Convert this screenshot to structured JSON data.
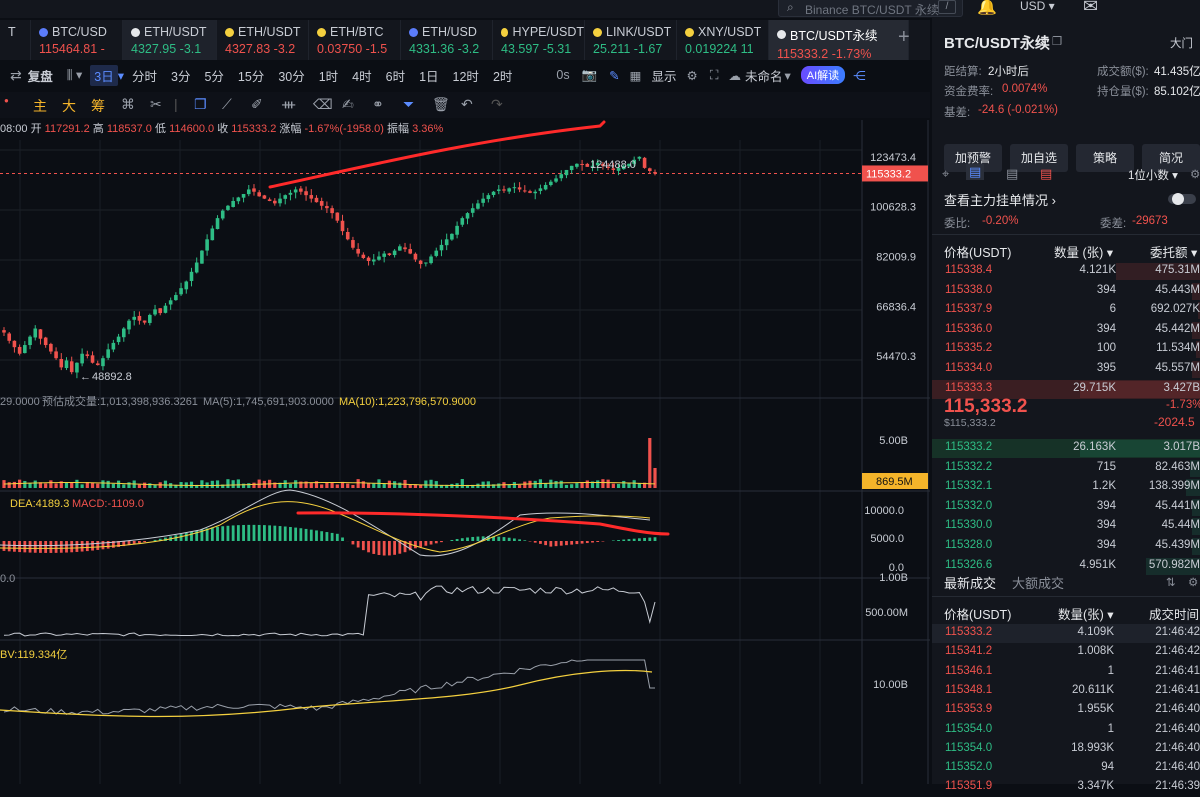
{
  "search": {
    "placeholder": "Binance BTC/USDT 永续",
    "shortcut": "/"
  },
  "header": {
    "currency": "USD"
  },
  "tabs": [
    {
      "name": "T",
      "price": "",
      "color": "#f0524d",
      "active": false,
      "w": 31,
      "dot": ""
    },
    {
      "name": "BTC/USD",
      "price": "115464.81",
      "pc": "-",
      "color": "#f0524d",
      "w": 92,
      "dot": "#5b7cfa"
    },
    {
      "name": "ETH/USDT",
      "price": "4327.95",
      "pc": "-3.1",
      "color": "#2ebd85",
      "w": 94,
      "dot": "#e6e8eb",
      "active": true
    },
    {
      "name": "ETH/USDT",
      "price": "4327.83",
      "pc": "-3.2",
      "color": "#f0524d",
      "w": 92,
      "dot": "#f4d03f"
    },
    {
      "name": "ETH/BTC",
      "price": "0.03750",
      "pc": "-1.5",
      "color": "#f0524d",
      "w": 92,
      "dot": "#f4d03f"
    },
    {
      "name": "ETH/USD",
      "price": "4331.36",
      "pc": "-3.2",
      "color": "#2ebd85",
      "w": 92,
      "dot": "#5b7cfa"
    },
    {
      "name": "HYPE/USDT",
      "price": "43.597",
      "pc": "-5.31",
      "color": "#2ebd85",
      "w": 92,
      "dot": "#f4d03f"
    },
    {
      "name": "LINK/USDT",
      "price": "25.211",
      "pc": "-1.67",
      "color": "#2ebd85",
      "w": 92,
      "dot": "#f4d03f"
    },
    {
      "name": "XNY/USDT",
      "price": "0.019224",
      "pc": "11",
      "color": "#2ebd85",
      "w": 92,
      "dot": "#f4d03f"
    },
    {
      "name": "BTC/USDT永续",
      "price": "115333.2",
      "pc": "-1.73%",
      "color": "#f0524d",
      "w": 140,
      "dot": "#e6e8eb",
      "active2": true
    }
  ],
  "toolbar": {
    "replay": "复盘",
    "interval_sel": "3日",
    "intervals": [
      "分时",
      "3分",
      "5分",
      "15分",
      "30分",
      "1时",
      "4时",
      "6时",
      "1日",
      "12时",
      "2时"
    ],
    "countdown": "0s",
    "display": "显示",
    "layout": "未命名",
    "ai": "AI解读",
    "draw_labels": [
      "主",
      "大",
      "筹"
    ]
  },
  "ohlc": {
    "time": "08:00",
    "open_l": "开",
    "open": "117291.2",
    "high_l": "高",
    "high": "118537.0",
    "low_l": "低",
    "low": "114600.0",
    "close_l": "收",
    "close": "115333.2",
    "chg_l": "涨幅",
    "chg": "-1.67%(-1958.0)",
    "amp_l": "振幅",
    "amp": "3.36%"
  },
  "chart_data": {
    "type": "candlestick",
    "price_axis": [
      "123473.4",
      "100628.3",
      "82009.9",
      "66836.4",
      "54470.3"
    ],
    "current_price": "115333.2",
    "annot_high": "124488.0",
    "annot_low": "48892.8",
    "close_trend": [
      60000,
      58000,
      56500,
      55000,
      57000,
      59000,
      61000,
      58500,
      57000,
      55500,
      54000,
      52000,
      53500,
      51000,
      53000,
      55000,
      54500,
      53000,
      52500,
      54000,
      56000,
      57500,
      59000,
      61000,
      63000,
      64000,
      63000,
      62500,
      64500,
      66000,
      65000,
      67000,
      68500,
      70000,
      72000,
      74000,
      77000,
      80000,
      84000,
      88000,
      92000,
      96000,
      99000,
      101000,
      103000,
      104500,
      106000,
      108000,
      107000,
      105000,
      104000,
      103000,
      102000,
      104000,
      105500,
      106500,
      108000,
      107000,
      105500,
      104000,
      102500,
      101000,
      100000,
      98000,
      95000,
      91000,
      88000,
      85000,
      83000,
      81500,
      80500,
      81000,
      82000,
      83000,
      82500,
      84000,
      85500,
      84500,
      83000,
      81000,
      79500,
      80000,
      82000,
      84000,
      86000,
      88000,
      90000,
      93000,
      96000,
      98000,
      100000,
      102000,
      104000,
      105500,
      107000,
      108000,
      107500,
      108500,
      109000,
      108000,
      107500,
      106500,
      107000,
      108500,
      110000,
      111500,
      113000,
      115000,
      117000,
      119000,
      120000,
      119500,
      118500,
      119000,
      120500,
      119000,
      118000,
      117000,
      118000,
      119000,
      120000,
      122000,
      123500,
      118000,
      116500,
      115333
    ],
    "volume": {
      "label": "预估成交量:1,013,398,936.3261",
      "ma5": "MA(5):1,745,691,903.0000",
      "ma10": "MA(10):1,223,796,570.9000",
      "axis": [
        "5.00B"
      ],
      "last": "869.5M",
      "prefix": "29.0000"
    },
    "macd": {
      "dea": "DEA:4189.3",
      "macd": "MACD:-1109.0",
      "axis": [
        "10000.0",
        "5000.0",
        "0.0"
      ]
    },
    "ind3": {
      "prefix": "0.0",
      "axis": [
        "1.00B",
        "500.00M"
      ]
    },
    "obv": {
      "label": "BV:119.334亿",
      "axis": [
        "10.00B"
      ]
    }
  },
  "right": {
    "title": "BTC/USDT永续",
    "gate": "大门",
    "settle_l": "距结算:",
    "settle": "2小时后",
    "turnover_l": "成交额($):",
    "turnover": "41.435亿",
    "funding_l": "资金费率:",
    "funding": "0.0074%",
    "oi_l": "持仓量($):",
    "oi": "85.102亿",
    "basis_l": "基差:",
    "basis": "-24.6 (-0.021%)",
    "buttons": [
      "加预警",
      "加自选",
      "策略",
      "简况"
    ],
    "decimal": "1位小数",
    "depth_title": "查看主力挂单情况",
    "ratio_l": "委比:",
    "ratio": "-0.20%",
    "diff_l": "委差:",
    "diff": "-29673",
    "book_head": [
      "价格(USDT)",
      "数量 (张)",
      "委托额"
    ],
    "asks": [
      [
        "115338.4",
        "4.121K",
        "475.31M",
        0.7
      ],
      [
        "115338.0",
        "394",
        "45.443M",
        0.07
      ],
      [
        "115337.9",
        "6",
        "692.027K",
        0.02
      ],
      [
        "115336.0",
        "394",
        "45.442M",
        0.07
      ],
      [
        "115335.2",
        "100",
        "11.534M",
        0.03
      ],
      [
        "115334.0",
        "395",
        "45.557M",
        0.07
      ],
      [
        "115333.3",
        "29.715K",
        "3.427B",
        1.0
      ]
    ],
    "mid_price": "115,333.2",
    "mid_pct": "-1.73%",
    "mid_usd": "$115,333.2",
    "mid_chg": "-2024.5",
    "bids": [
      [
        "115333.2",
        "26.163K",
        "3.017B",
        1.0
      ],
      [
        "115332.2",
        "715",
        "82.463M",
        0.08
      ],
      [
        "115332.1",
        "1.2K",
        "138.399M",
        0.12
      ],
      [
        "115332.0",
        "394",
        "45.441M",
        0.07
      ],
      [
        "115330.0",
        "394",
        "45.44M",
        0.07
      ],
      [
        "115328.0",
        "394",
        "45.439M",
        0.07
      ],
      [
        "115326.6",
        "4.951K",
        "570.982M",
        0.45
      ]
    ],
    "trades_tabs": [
      "最新成交",
      "大额成交"
    ],
    "trade_head": [
      "价格(USDT)",
      "数量(张)",
      "成交时间"
    ],
    "trades": [
      [
        "115333.2",
        "4.109K",
        "21:46:42",
        "r"
      ],
      [
        "115341.2",
        "1.008K",
        "21:46:42",
        "r"
      ],
      [
        "115346.1",
        "1",
        "21:46:41",
        "r"
      ],
      [
        "115348.1",
        "20.611K",
        "21:46:41",
        "r"
      ],
      [
        "115353.9",
        "1.955K",
        "21:46:40",
        "r"
      ],
      [
        "115354.0",
        "1",
        "21:46:40",
        "g"
      ],
      [
        "115354.0",
        "18.993K",
        "21:46:40",
        "g"
      ],
      [
        "115352.0",
        "94",
        "21:46:40",
        "g"
      ],
      [
        "115351.9",
        "3.347K",
        "21:46:39",
        "r"
      ]
    ]
  }
}
